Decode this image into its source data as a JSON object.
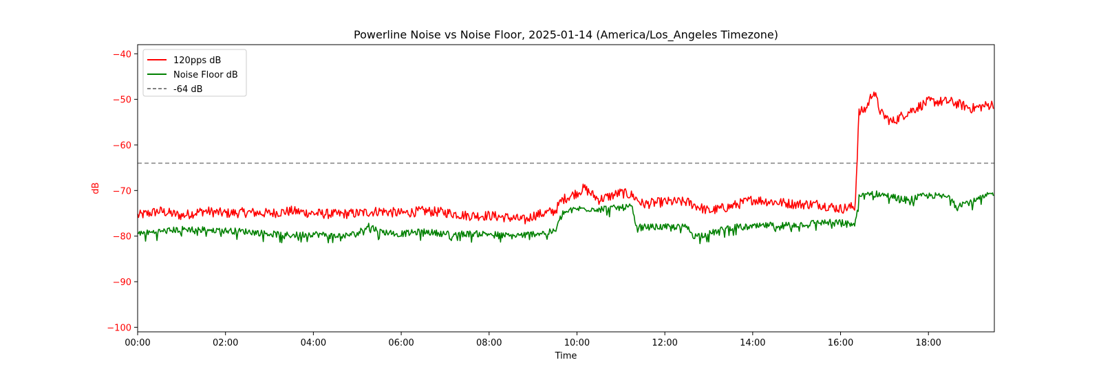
{
  "chart_data": {
    "type": "line",
    "title": "Powerline Noise vs Noise Floor, 2025-01-14 (America/Los_Angeles Timezone)",
    "xlabel": "Time",
    "ylabel": "dB",
    "x_ticks": [
      "00:00",
      "02:00",
      "04:00",
      "06:00",
      "08:00",
      "10:00",
      "12:00",
      "14:00",
      "16:00",
      "18:00"
    ],
    "xlim": [
      "00:00",
      "19:30"
    ],
    "y_ticks": [
      -40,
      -50,
      -60,
      -70,
      -80,
      -90,
      -100
    ],
    "ylim": [
      -101,
      -38
    ],
    "grid": false,
    "legend_position": "upper-left",
    "colors": {
      "signal": "#ff0000",
      "floor": "#008000",
      "threshold": "#808080",
      "ylabel": "#ff0000"
    },
    "series": [
      {
        "name": "120pps dB",
        "color": "#ff0000",
        "points": [
          [
            "00:00",
            -75.5
          ],
          [
            "00:30",
            -74.5
          ],
          [
            "01:00",
            -75.5
          ],
          [
            "01:30",
            -74.5
          ],
          [
            "02:00",
            -75.0
          ],
          [
            "02:30",
            -74.8
          ],
          [
            "03:00",
            -75.0
          ],
          [
            "03:30",
            -74.5
          ],
          [
            "04:00",
            -75.0
          ],
          [
            "04:30",
            -75.2
          ],
          [
            "05:00",
            -75.0
          ],
          [
            "05:30",
            -74.5
          ],
          [
            "06:00",
            -75.0
          ],
          [
            "06:30",
            -74.5
          ],
          [
            "07:00",
            -74.8
          ],
          [
            "07:30",
            -75.5
          ],
          [
            "08:00",
            -75.5
          ],
          [
            "08:30",
            -76.0
          ],
          [
            "08:50",
            -76.5
          ],
          [
            "09:00",
            -75.5
          ],
          [
            "09:30",
            -74.5
          ],
          [
            "09:40",
            -72.0
          ],
          [
            "10:00",
            -70.5
          ],
          [
            "10:10",
            -69.5
          ],
          [
            "10:30",
            -72.0
          ],
          [
            "11:00",
            -70.5
          ],
          [
            "11:15",
            -71.0
          ],
          [
            "11:30",
            -73.0
          ],
          [
            "12:00",
            -72.5
          ],
          [
            "12:30",
            -72.5
          ],
          [
            "13:00",
            -74.5
          ],
          [
            "13:30",
            -73.5
          ],
          [
            "14:00",
            -72.0
          ],
          [
            "14:30",
            -72.5
          ],
          [
            "15:00",
            -73.0
          ],
          [
            "15:30",
            -73.0
          ],
          [
            "16:00",
            -74.0
          ],
          [
            "16:20",
            -73.5
          ],
          [
            "16:25",
            -53.0
          ],
          [
            "16:35",
            -52.0
          ],
          [
            "16:45",
            -48.0
          ],
          [
            "16:55",
            -53.0
          ],
          [
            "17:10",
            -55.0
          ],
          [
            "17:30",
            -53.0
          ],
          [
            "18:00",
            -50.5
          ],
          [
            "18:30",
            -50.5
          ],
          [
            "19:00",
            -52.0
          ],
          [
            "19:30",
            -51.0
          ]
        ]
      },
      {
        "name": "Noise Floor dB",
        "color": "#008000",
        "points": [
          [
            "00:00",
            -79.5
          ],
          [
            "00:30",
            -79.0
          ],
          [
            "01:00",
            -78.5
          ],
          [
            "01:30",
            -78.5
          ],
          [
            "02:00",
            -78.8
          ],
          [
            "02:30",
            -79.0
          ],
          [
            "03:00",
            -79.5
          ],
          [
            "03:30",
            -79.8
          ],
          [
            "04:00",
            -79.5
          ],
          [
            "04:30",
            -80.0
          ],
          [
            "05:00",
            -79.5
          ],
          [
            "05:15",
            -77.5
          ],
          [
            "05:30",
            -79.0
          ],
          [
            "06:00",
            -79.5
          ],
          [
            "06:30",
            -79.0
          ],
          [
            "07:00",
            -79.5
          ],
          [
            "07:30",
            -79.5
          ],
          [
            "08:00",
            -79.5
          ],
          [
            "08:30",
            -80.0
          ],
          [
            "09:00",
            -79.5
          ],
          [
            "09:30",
            -79.0
          ],
          [
            "09:40",
            -75.0
          ],
          [
            "10:00",
            -74.0
          ],
          [
            "10:30",
            -74.0
          ],
          [
            "11:00",
            -73.8
          ],
          [
            "11:15",
            -73.5
          ],
          [
            "11:20",
            -78.0
          ],
          [
            "11:30",
            -78.0
          ],
          [
            "12:00",
            -78.0
          ],
          [
            "12:30",
            -78.0
          ],
          [
            "12:40",
            -80.0
          ],
          [
            "13:00",
            -79.5
          ],
          [
            "13:30",
            -78.0
          ],
          [
            "14:00",
            -78.0
          ],
          [
            "14:30",
            -77.5
          ],
          [
            "15:00",
            -77.5
          ],
          [
            "15:30",
            -77.0
          ],
          [
            "16:00",
            -77.0
          ],
          [
            "16:20",
            -77.5
          ],
          [
            "16:25",
            -71.5
          ],
          [
            "16:40",
            -70.5
          ],
          [
            "17:00",
            -71.0
          ],
          [
            "17:30",
            -72.0
          ],
          [
            "18:00",
            -71.0
          ],
          [
            "18:30",
            -71.5
          ],
          [
            "18:40",
            -73.0
          ],
          [
            "19:00",
            -72.5
          ],
          [
            "19:30",
            -70.5
          ]
        ]
      }
    ],
    "threshold": {
      "name": "-64 dB",
      "value": -64,
      "style": "dashed",
      "color": "#808080"
    }
  }
}
